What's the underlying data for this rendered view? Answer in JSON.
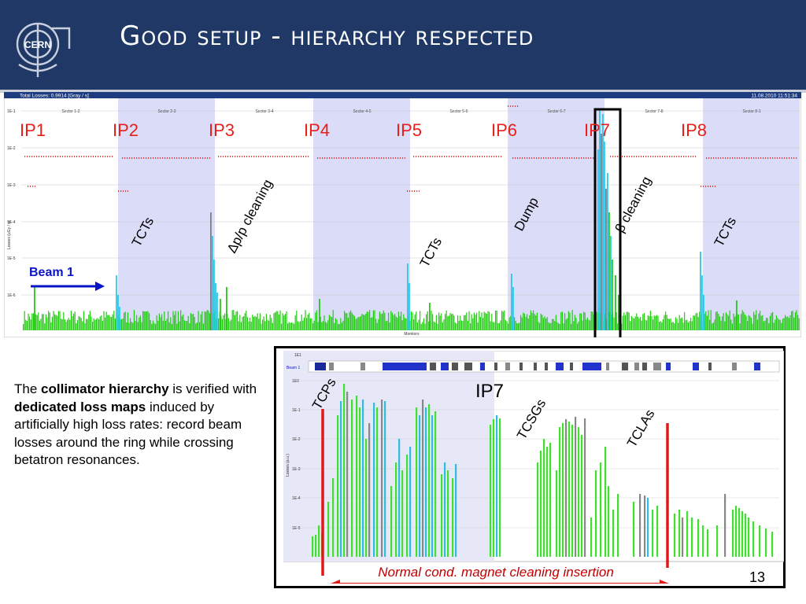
{
  "slide": {
    "title": "Good setup - hierarchy respected",
    "logo_text": "CERN",
    "page_number": "13"
  },
  "description": {
    "parts": [
      {
        "text": "The ",
        "bold": false
      },
      {
        "text": "collimator hierarchy",
        "bold": true
      },
      {
        "text": " is verified with ",
        "bold": false
      },
      {
        "text": "dedicated loss maps",
        "bold": true
      },
      {
        "text": " induced by artificially high loss rates: record beam losses around the ring while crossing betatron resonances.",
        "bold": false
      }
    ]
  },
  "top_plot": {
    "header_left": "Total Losses: 0.9914 [Gray / s]",
    "header_right": "11.08.2010 11:51:34",
    "sectors": [
      "Sector 1-2",
      "Sector 2-3",
      "Sector 3-4",
      "Sector 4-5",
      "Sector 5-6",
      "Sector 6-7",
      "Sector 7-8",
      "Sector 8-1"
    ],
    "y_ticks": [
      "1E-1",
      "1E-2",
      "1E-3",
      "1E-4",
      "1E-5",
      "1E-6"
    ],
    "y_axis_label": "Losses (uGy / s)",
    "x_axis_label": "Monitors",
    "ip_labels": [
      "IP1",
      "IP2",
      "IP3",
      "IP4",
      "IP5",
      "IP6",
      "IP7",
      "IP8"
    ],
    "beam_label": "Beam 1",
    "annotations": {
      "tcts_1": "TCTs",
      "momentum_cleaning": "Δp/p cleaning",
      "tcts_5": "TCTs",
      "dump": "Dump",
      "betatron_cleaning": "β cleaning",
      "tcts_8": "TCTs"
    },
    "colors": {
      "ip_label": "#e8201a",
      "beam_label": "#0a14c8",
      "shade": "#dadcf8",
      "green": "#22cc11",
      "cyan": "#22ccee",
      "gray": "#7a8088",
      "red_marker": "#cc1111"
    }
  },
  "detail_plot": {
    "beam_label": "Beam 1",
    "y_ticks": [
      "1E0",
      "1E-1",
      "1E-2",
      "1E-3",
      "1E-4",
      "1E-5"
    ],
    "y_top": "1E1",
    "y_axis_label": "Losses (a.u.)",
    "ip_label": "IP7",
    "annotations": {
      "tcps": "TCPs",
      "tcsgs": "TCSGs",
      "tclas": "TCLAs"
    },
    "caption": "Normal cond. magnet cleaning insertion",
    "colors": {
      "marker_line": "#e01818",
      "bar_green": "#44dd33",
      "bar_cyan": "#33bbdd",
      "bar_gray": "#888888"
    }
  }
}
